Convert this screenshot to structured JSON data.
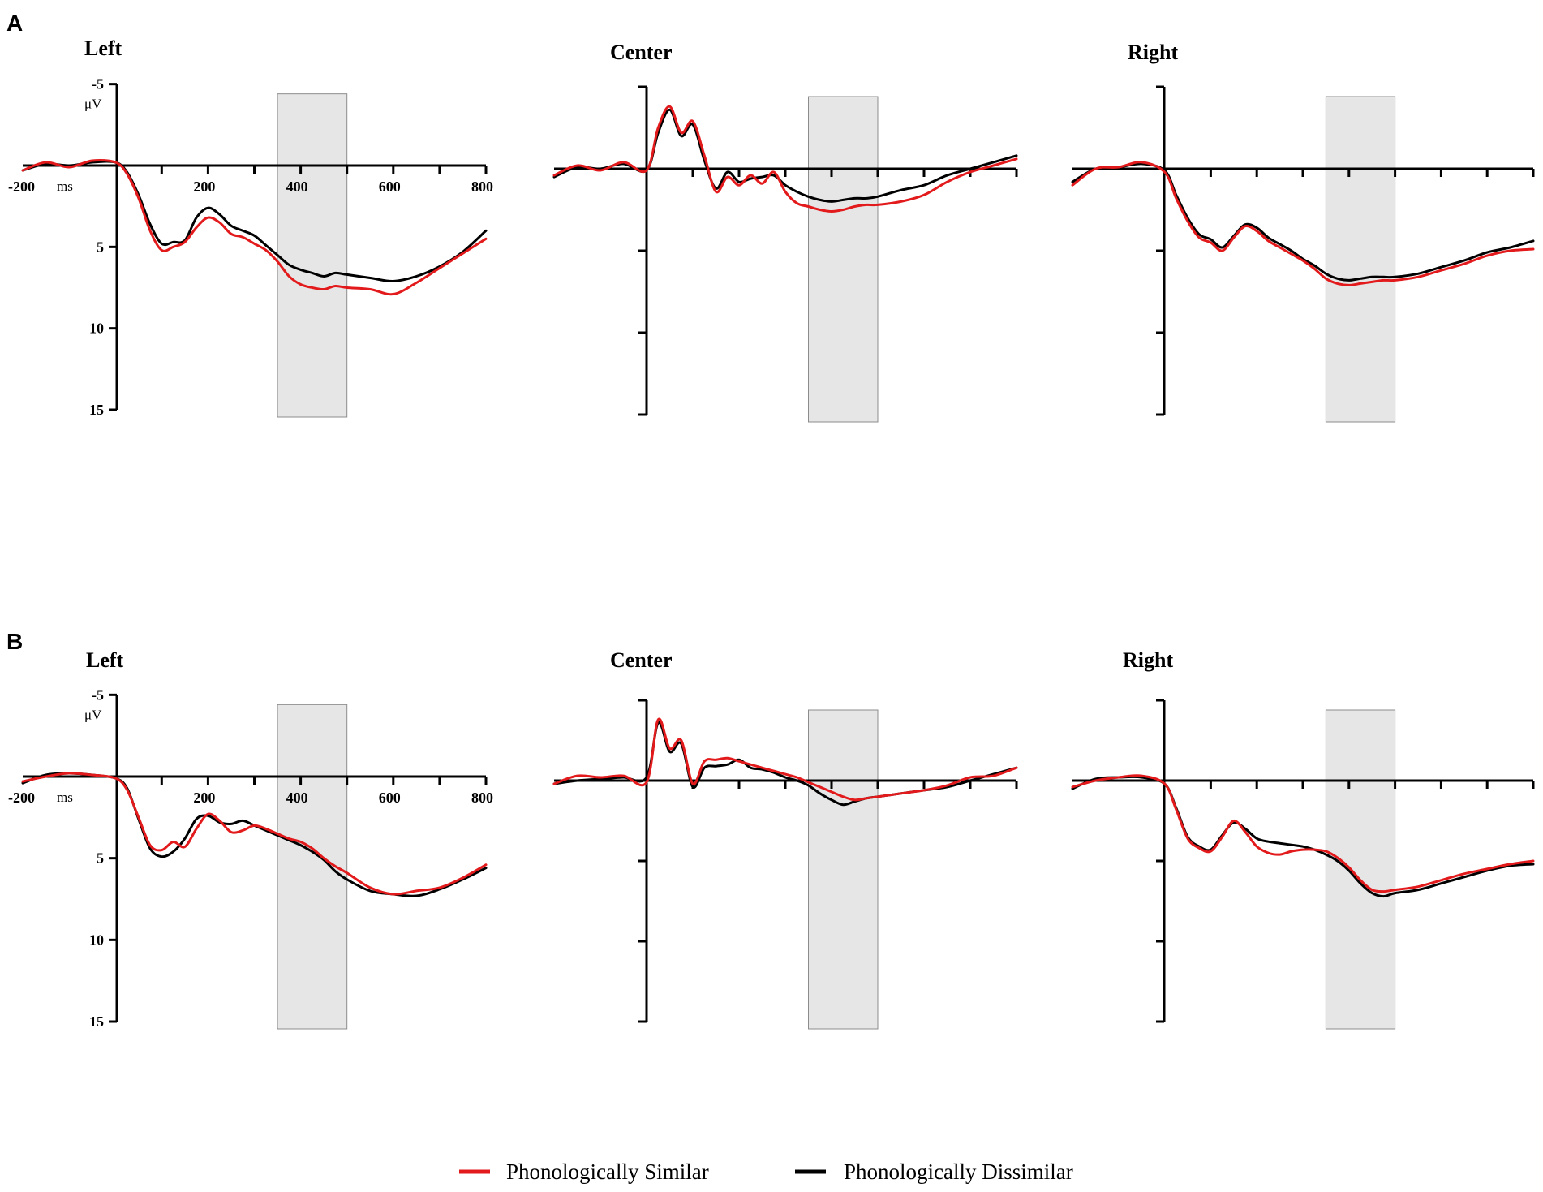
{
  "panels": [
    {
      "letter": "A"
    },
    {
      "letter": "B"
    }
  ],
  "legend": {
    "items": [
      {
        "label": "Phonologically Similar",
        "color": "#e31a1c"
      },
      {
        "label": "Phonologically Dissimilar",
        "color": "#000000"
      }
    ]
  },
  "chart_data": [
    {
      "type": "line",
      "panel": "A",
      "title": "Left",
      "xlim": [
        -200,
        800
      ],
      "ylim": [
        -5,
        15
      ],
      "y_inverted": true,
      "xticks": [
        -200,
        200,
        400,
        600,
        800
      ],
      "xtick_labels": [
        "-200",
        "200",
        "400",
        "600",
        "800"
      ],
      "yticks": [
        -5,
        5,
        10,
        15
      ],
      "ytick_labels": [
        "-5",
        "5",
        "10",
        "15"
      ],
      "xunit": "ms",
      "yunit": "μV",
      "shaded_window": [
        350,
        500
      ],
      "x": [
        -200,
        -150,
        -100,
        -50,
        0,
        25,
        50,
        75,
        100,
        125,
        150,
        175,
        200,
        225,
        250,
        275,
        300,
        325,
        350,
        375,
        400,
        425,
        450,
        475,
        500,
        550,
        600,
        650,
        700,
        750,
        800
      ],
      "series": [
        {
          "name": "Phonologically Similar",
          "color": "#e31a1c",
          "values": [
            0.3,
            -0.2,
            0.1,
            -0.3,
            -0.2,
            0.5,
            2.0,
            4.0,
            5.2,
            5.0,
            4.7,
            3.8,
            3.2,
            3.5,
            4.2,
            4.4,
            4.8,
            5.2,
            5.9,
            6.8,
            7.3,
            7.5,
            7.6,
            7.4,
            7.5,
            7.6,
            7.9,
            7.2,
            6.3,
            5.4,
            4.5
          ]
        },
        {
          "name": "Phonologically Dissimilar",
          "color": "#000000",
          "values": [
            0.3,
            -0.1,
            0.0,
            -0.2,
            -0.2,
            0.4,
            1.8,
            3.6,
            4.8,
            4.7,
            4.6,
            3.2,
            2.6,
            3.0,
            3.7,
            4.0,
            4.3,
            4.9,
            5.5,
            6.1,
            6.4,
            6.6,
            6.8,
            6.6,
            6.7,
            6.9,
            7.1,
            6.8,
            6.2,
            5.3,
            4.0
          ]
        }
      ]
    },
    {
      "type": "line",
      "panel": "A",
      "title": "Center",
      "xlim": [
        -200,
        800
      ],
      "ylim": [
        -5,
        15
      ],
      "y_inverted": true,
      "shaded_window": [
        350,
        500
      ],
      "x": [
        -200,
        -150,
        -100,
        -50,
        0,
        25,
        50,
        75,
        100,
        125,
        150,
        175,
        200,
        225,
        250,
        275,
        300,
        325,
        350,
        375,
        400,
        425,
        450,
        475,
        500,
        550,
        600,
        650,
        700,
        750,
        800
      ],
      "series": [
        {
          "name": "Phonologically Similar",
          "color": "#e31a1c",
          "values": [
            0.4,
            -0.2,
            0.1,
            -0.4,
            0.1,
            -2.5,
            -3.8,
            -2.2,
            -2.9,
            -0.8,
            1.4,
            0.5,
            1.0,
            0.4,
            0.9,
            0.2,
            1.4,
            2.1,
            2.3,
            2.5,
            2.6,
            2.5,
            2.3,
            2.2,
            2.2,
            2.0,
            1.6,
            0.8,
            0.2,
            -0.2,
            -0.6
          ]
        },
        {
          "name": "Phonologically Dissimilar",
          "color": "#000000",
          "values": [
            0.5,
            -0.1,
            0.0,
            -0.3,
            0.1,
            -2.2,
            -3.6,
            -2.0,
            -2.7,
            -0.5,
            1.2,
            0.2,
            0.8,
            0.6,
            0.5,
            0.4,
            1.0,
            1.4,
            1.7,
            1.9,
            2.0,
            1.9,
            1.8,
            1.8,
            1.7,
            1.3,
            1.0,
            0.4,
            0.0,
            -0.4,
            -0.8
          ]
        }
      ]
    },
    {
      "type": "line",
      "panel": "A",
      "title": "Right",
      "xlim": [
        -200,
        800
      ],
      "ylim": [
        -5,
        15
      ],
      "y_inverted": true,
      "shaded_window": [
        350,
        500
      ],
      "x": [
        -200,
        -150,
        -100,
        -50,
        0,
        25,
        50,
        75,
        100,
        125,
        150,
        175,
        200,
        225,
        250,
        275,
        300,
        325,
        350,
        375,
        400,
        425,
        450,
        475,
        500,
        550,
        600,
        650,
        700,
        750,
        800
      ],
      "series": [
        {
          "name": "Phonologically Similar",
          "color": "#e31a1c",
          "values": [
            1.0,
            0.0,
            -0.1,
            -0.4,
            0.2,
            1.8,
            3.2,
            4.2,
            4.5,
            5.0,
            4.2,
            3.5,
            3.8,
            4.4,
            4.8,
            5.2,
            5.6,
            6.1,
            6.7,
            7.0,
            7.1,
            7.0,
            6.9,
            6.8,
            6.8,
            6.6,
            6.2,
            5.8,
            5.3,
            5.0,
            4.9
          ]
        },
        {
          "name": "Phonologically Dissimilar",
          "color": "#000000",
          "values": [
            0.8,
            0.0,
            -0.1,
            -0.3,
            0.1,
            1.6,
            3.0,
            4.0,
            4.3,
            4.8,
            4.1,
            3.4,
            3.6,
            4.2,
            4.6,
            5.0,
            5.5,
            5.9,
            6.4,
            6.7,
            6.8,
            6.7,
            6.6,
            6.6,
            6.6,
            6.4,
            6.0,
            5.6,
            5.1,
            4.8,
            4.4
          ]
        }
      ]
    },
    {
      "type": "line",
      "panel": "B",
      "title": "Left",
      "xlim": [
        -200,
        800
      ],
      "ylim": [
        -5,
        15
      ],
      "y_inverted": true,
      "xticks": [
        -200,
        200,
        400,
        600,
        800
      ],
      "xtick_labels": [
        "-200",
        "200",
        "400",
        "600",
        "800"
      ],
      "yticks": [
        -5,
        5,
        10,
        15
      ],
      "ytick_labels": [
        "-5",
        "5",
        "10",
        "15"
      ],
      "xunit": "ms",
      "yunit": "μV",
      "shaded_window": [
        350,
        500
      ],
      "x": [
        -200,
        -150,
        -100,
        -50,
        0,
        25,
        50,
        75,
        100,
        125,
        150,
        175,
        200,
        225,
        250,
        275,
        300,
        325,
        350,
        375,
        400,
        425,
        450,
        475,
        500,
        550,
        600,
        650,
        700,
        750,
        800
      ],
      "series": [
        {
          "name": "Phonologically Similar",
          "color": "#e31a1c",
          "values": [
            0.3,
            0.0,
            -0.2,
            -0.1,
            0.1,
            0.8,
            2.5,
            4.2,
            4.5,
            4.0,
            4.3,
            3.2,
            2.3,
            2.7,
            3.4,
            3.3,
            3.0,
            3.2,
            3.5,
            3.8,
            4.0,
            4.4,
            5.0,
            5.5,
            5.9,
            6.8,
            7.2,
            7.0,
            6.8,
            6.2,
            5.4
          ]
        },
        {
          "name": "Phonologically Dissimilar",
          "color": "#000000",
          "values": [
            0.4,
            -0.1,
            -0.2,
            -0.1,
            0.1,
            0.7,
            2.6,
            4.4,
            4.9,
            4.6,
            3.8,
            2.6,
            2.4,
            2.8,
            2.9,
            2.7,
            3.0,
            3.3,
            3.6,
            3.9,
            4.2,
            4.6,
            5.1,
            5.8,
            6.3,
            7.0,
            7.2,
            7.3,
            6.9,
            6.3,
            5.6
          ]
        }
      ]
    },
    {
      "type": "line",
      "panel": "B",
      "title": "Center",
      "xlim": [
        -200,
        800
      ],
      "ylim": [
        -5,
        15
      ],
      "y_inverted": true,
      "shaded_window": [
        350,
        500
      ],
      "x": [
        -200,
        -150,
        -100,
        -50,
        0,
        25,
        50,
        75,
        100,
        125,
        150,
        175,
        200,
        225,
        250,
        275,
        300,
        325,
        350,
        375,
        400,
        425,
        450,
        475,
        500,
        550,
        600,
        650,
        700,
        750,
        800
      ],
      "series": [
        {
          "name": "Phonologically Similar",
          "color": "#e31a1c",
          "values": [
            0.2,
            -0.3,
            -0.2,
            -0.3,
            0.1,
            -3.8,
            -2.0,
            -2.5,
            0.2,
            -1.2,
            -1.3,
            -1.4,
            -1.2,
            -1.0,
            -0.8,
            -0.6,
            -0.4,
            -0.2,
            0.1,
            0.4,
            0.7,
            1.0,
            1.2,
            1.1,
            1.0,
            0.8,
            0.6,
            0.3,
            -0.2,
            -0.3,
            -0.8
          ]
        },
        {
          "name": "Phonologically Dissimilar",
          "color": "#000000",
          "values": [
            0.2,
            0.0,
            -0.1,
            -0.2,
            -0.2,
            -3.6,
            -1.8,
            -2.3,
            0.4,
            -0.8,
            -0.9,
            -1.0,
            -1.3,
            -0.8,
            -0.7,
            -0.5,
            -0.2,
            0.0,
            0.3,
            0.8,
            1.2,
            1.5,
            1.3,
            1.1,
            1.0,
            0.8,
            0.6,
            0.4,
            0.0,
            -0.4,
            -0.8
          ]
        }
      ]
    },
    {
      "type": "line",
      "panel": "B",
      "title": "Right",
      "xlim": [
        -200,
        800
      ],
      "ylim": [
        -5,
        15
      ],
      "y_inverted": true,
      "shaded_window": [
        350,
        500
      ],
      "x": [
        -200,
        -150,
        -100,
        -50,
        0,
        25,
        50,
        75,
        100,
        125,
        150,
        175,
        200,
        225,
        250,
        275,
        300,
        325,
        350,
        375,
        400,
        425,
        450,
        475,
        500,
        550,
        600,
        650,
        700,
        750,
        800
      ],
      "series": [
        {
          "name": "Phonologically Similar",
          "color": "#e31a1c",
          "values": [
            0.4,
            0.0,
            -0.2,
            -0.3,
            0.2,
            1.8,
            3.6,
            4.2,
            4.4,
            3.5,
            2.5,
            3.2,
            4.1,
            4.5,
            4.6,
            4.4,
            4.3,
            4.3,
            4.4,
            4.8,
            5.4,
            6.2,
            6.8,
            6.9,
            6.8,
            6.6,
            6.2,
            5.8,
            5.5,
            5.2,
            5.0
          ]
        },
        {
          "name": "Phonologically Dissimilar",
          "color": "#000000",
          "values": [
            0.5,
            -0.1,
            -0.2,
            -0.2,
            0.2,
            1.7,
            3.5,
            4.1,
            4.3,
            3.4,
            2.6,
            3.0,
            3.6,
            3.8,
            3.9,
            4.0,
            4.1,
            4.3,
            4.6,
            5.0,
            5.6,
            6.4,
            7.0,
            7.2,
            7.0,
            6.8,
            6.4,
            6.0,
            5.6,
            5.3,
            5.2
          ]
        }
      ]
    }
  ]
}
